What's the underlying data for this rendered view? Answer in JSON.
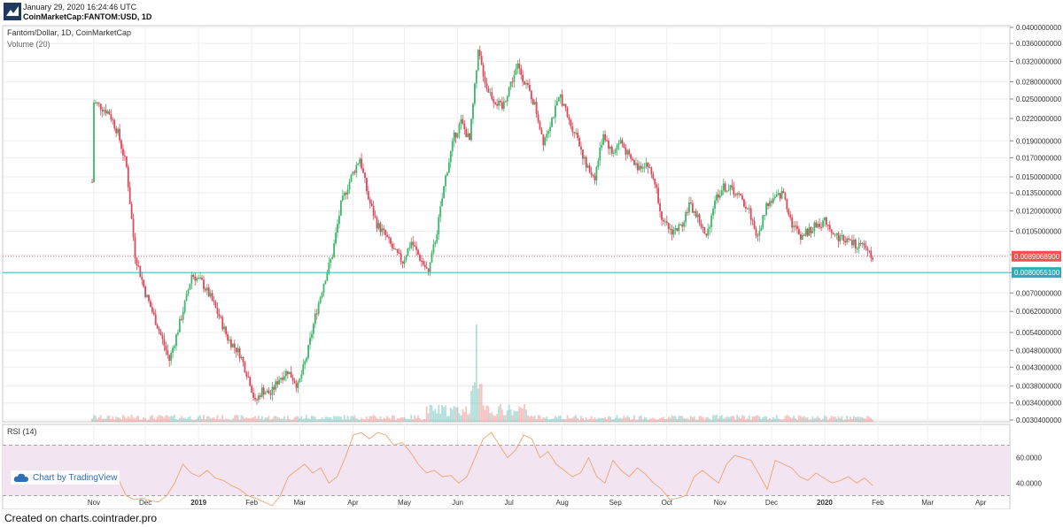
{
  "header": {
    "timestamp": "January 29, 2020 16:24:46 UTC",
    "symbol": "CoinMarketCap:FANTOM:USD, 1D"
  },
  "footer": {
    "text": "Created on charts.cointrader.pro"
  },
  "watermark": {
    "text": "Chart by TradingView",
    "icon": "tradingview-cloud-icon"
  },
  "colors": {
    "up": "#26a69a",
    "down": "#ef5350",
    "upCandle": "#3fb66b",
    "downCandle": "#e0475a",
    "rsi_line": "#f0a36f",
    "rsi_band": "#f3e4f2",
    "current_price": "#ef5350",
    "reference_price": "#33aab5"
  },
  "chart_data": [
    {
      "type": "candlestick",
      "title": "Fantom/Dollar, 1D, CoinMarketCap",
      "indicator_label": "Volume (20)",
      "y_scale": "log",
      "ylim": [
        0.003,
        0.04
      ],
      "y_ticks": [
        "0.0400000000",
        "0.0360000000",
        "0.0320000000",
        "0.0280000000",
        "0.0250000000",
        "0.0220000000",
        "0.0190000000",
        "0.0170000000",
        "0.0150000000",
        "0.0135000000",
        "0.0120000000",
        "0.0105000000",
        "0.0090000000",
        "0.0080000000",
        "0.0070000000",
        "0.0062000000",
        "0.0054000000",
        "0.0048000000",
        "0.0043000000",
        "0.0038000000",
        "0.0034000000",
        "0.0030400000"
      ],
      "x_ticks": [
        "Nov",
        "Dec",
        "2019",
        "Feb",
        "Mar",
        "Apr",
        "May",
        "Jun",
        "Jul",
        "Aug",
        "Sep",
        "Oct",
        "Nov",
        "Dec",
        "2020",
        "Feb",
        "Mar",
        "Apr"
      ],
      "price_labels": [
        {
          "value": "0.0089068900",
          "kind": "current"
        },
        {
          "value": "0.0080055100",
          "kind": "reference"
        }
      ],
      "close_path": [
        {
          "date": "2018-10-31",
          "close": 0.0145
        },
        {
          "date": "2018-11-01",
          "close": 0.0245
        },
        {
          "date": "2018-11-05",
          "close": 0.0238
        },
        {
          "date": "2018-11-10",
          "close": 0.0228
        },
        {
          "date": "2018-11-15",
          "close": 0.02
        },
        {
          "date": "2018-11-20",
          "close": 0.016
        },
        {
          "date": "2018-11-25",
          "close": 0.009
        },
        {
          "date": "2018-12-01",
          "close": 0.007
        },
        {
          "date": "2018-12-05",
          "close": 0.0062
        },
        {
          "date": "2018-12-10",
          "close": 0.0053
        },
        {
          "date": "2018-12-15",
          "close": 0.0045
        },
        {
          "date": "2018-12-20",
          "close": 0.0055
        },
        {
          "date": "2018-12-25",
          "close": 0.0068
        },
        {
          "date": "2018-12-28",
          "close": 0.0079
        },
        {
          "date": "2019-01-03",
          "close": 0.0075
        },
        {
          "date": "2019-01-08",
          "close": 0.0068
        },
        {
          "date": "2019-01-13",
          "close": 0.006
        },
        {
          "date": "2019-01-18",
          "close": 0.0052
        },
        {
          "date": "2019-01-25",
          "close": 0.0047
        },
        {
          "date": "2019-01-31",
          "close": 0.0039
        },
        {
          "date": "2019-02-03",
          "close": 0.0034
        },
        {
          "date": "2019-02-07",
          "close": 0.0037
        },
        {
          "date": "2019-02-12",
          "close": 0.0036
        },
        {
          "date": "2019-02-17",
          "close": 0.004
        },
        {
          "date": "2019-02-22",
          "close": 0.0042
        },
        {
          "date": "2019-02-28",
          "close": 0.0038
        },
        {
          "date": "2019-03-05",
          "close": 0.0046
        },
        {
          "date": "2019-03-10",
          "close": 0.006
        },
        {
          "date": "2019-03-15",
          "close": 0.0075
        },
        {
          "date": "2019-03-20",
          "close": 0.009
        },
        {
          "date": "2019-03-25",
          "close": 0.0125
        },
        {
          "date": "2019-03-31",
          "close": 0.015
        },
        {
          "date": "2019-04-05",
          "close": 0.017
        },
        {
          "date": "2019-04-10",
          "close": 0.013
        },
        {
          "date": "2019-04-15",
          "close": 0.011
        },
        {
          "date": "2019-04-20",
          "close": 0.0102
        },
        {
          "date": "2019-04-25",
          "close": 0.0092
        },
        {
          "date": "2019-04-30",
          "close": 0.0086
        },
        {
          "date": "2019-05-05",
          "close": 0.0098
        },
        {
          "date": "2019-05-10",
          "close": 0.0088
        },
        {
          "date": "2019-05-15",
          "close": 0.008
        },
        {
          "date": "2019-05-20",
          "close": 0.0105
        },
        {
          "date": "2019-05-25",
          "close": 0.015
        },
        {
          "date": "2019-05-30",
          "close": 0.0195
        },
        {
          "date": "2019-06-03",
          "close": 0.0215
        },
        {
          "date": "2019-06-08",
          "close": 0.019
        },
        {
          "date": "2019-06-13",
          "close": 0.034
        },
        {
          "date": "2019-06-18",
          "close": 0.027
        },
        {
          "date": "2019-06-22",
          "close": 0.025
        },
        {
          "date": "2019-06-27",
          "close": 0.0235
        },
        {
          "date": "2019-07-01",
          "close": 0.027
        },
        {
          "date": "2019-07-06",
          "close": 0.031
        },
        {
          "date": "2019-07-11",
          "close": 0.0275
        },
        {
          "date": "2019-07-16",
          "close": 0.024
        },
        {
          "date": "2019-07-21",
          "close": 0.019
        },
        {
          "date": "2019-07-26",
          "close": 0.022
        },
        {
          "date": "2019-07-31",
          "close": 0.0255
        },
        {
          "date": "2019-08-05",
          "close": 0.0215
        },
        {
          "date": "2019-08-10",
          "close": 0.0195
        },
        {
          "date": "2019-08-15",
          "close": 0.016
        },
        {
          "date": "2019-08-20",
          "close": 0.015
        },
        {
          "date": "2019-08-25",
          "close": 0.02
        },
        {
          "date": "2019-08-30",
          "close": 0.0175
        },
        {
          "date": "2019-09-04",
          "close": 0.019
        },
        {
          "date": "2019-09-09",
          "close": 0.017
        },
        {
          "date": "2019-09-14",
          "close": 0.016
        },
        {
          "date": "2019-09-19",
          "close": 0.0165
        },
        {
          "date": "2019-09-24",
          "close": 0.0145
        },
        {
          "date": "2019-09-29",
          "close": 0.011
        },
        {
          "date": "2019-10-04",
          "close": 0.0105
        },
        {
          "date": "2019-10-09",
          "close": 0.0108
        },
        {
          "date": "2019-10-14",
          "close": 0.0125
        },
        {
          "date": "2019-10-19",
          "close": 0.0115
        },
        {
          "date": "2019-10-24",
          "close": 0.01
        },
        {
          "date": "2019-10-29",
          "close": 0.013
        },
        {
          "date": "2019-11-03",
          "close": 0.014
        },
        {
          "date": "2019-11-08",
          "close": 0.0138
        },
        {
          "date": "2019-11-13",
          "close": 0.013
        },
        {
          "date": "2019-11-18",
          "close": 0.012
        },
        {
          "date": "2019-11-23",
          "close": 0.01
        },
        {
          "date": "2019-11-28",
          "close": 0.0125
        },
        {
          "date": "2019-12-03",
          "close": 0.013
        },
        {
          "date": "2019-12-08",
          "close": 0.0135
        },
        {
          "date": "2019-12-13",
          "close": 0.011
        },
        {
          "date": "2019-12-18",
          "close": 0.0102
        },
        {
          "date": "2019-12-23",
          "close": 0.0105
        },
        {
          "date": "2019-12-28",
          "close": 0.011
        },
        {
          "date": "2020-01-02",
          "close": 0.0112
        },
        {
          "date": "2020-01-07",
          "close": 0.0102
        },
        {
          "date": "2020-01-12",
          "close": 0.01
        },
        {
          "date": "2020-01-17",
          "close": 0.0097
        },
        {
          "date": "2020-01-22",
          "close": 0.0095
        },
        {
          "date": "2020-01-26",
          "close": 0.0093
        },
        {
          "date": "2020-01-29",
          "close": 0.0089
        }
      ],
      "volume_spike": {
        "date": "2019-06-12"
      }
    },
    {
      "type": "line",
      "title": "RSI (14)",
      "ylim": [
        15,
        85
      ],
      "y_ticks": [
        "60.0000",
        "40.0000",
        "20.0000"
      ],
      "band": [
        30,
        70
      ],
      "series": [
        {
          "values": [
            44,
            30,
            27,
            28,
            26,
            25,
            30,
            40,
            55,
            48,
            45,
            50,
            44,
            42,
            38,
            35,
            30,
            28,
            25,
            22,
            30,
            45,
            50,
            55,
            48,
            52,
            40,
            45,
            60,
            78,
            80,
            75,
            80,
            78,
            70,
            72,
            65,
            55,
            48,
            50,
            45,
            46,
            40,
            45,
            60,
            75,
            80,
            70,
            60,
            66,
            78,
            75,
            60,
            65,
            55,
            50,
            45,
            48,
            60,
            45,
            40,
            58,
            50,
            45,
            52,
            47,
            40,
            35,
            27,
            28,
            30,
            45,
            50,
            45,
            40,
            55,
            62,
            60,
            58,
            47,
            35,
            58,
            55,
            52,
            45,
            42,
            48,
            44,
            40,
            42,
            45,
            40,
            44,
            38
          ]
        }
      ]
    }
  ]
}
